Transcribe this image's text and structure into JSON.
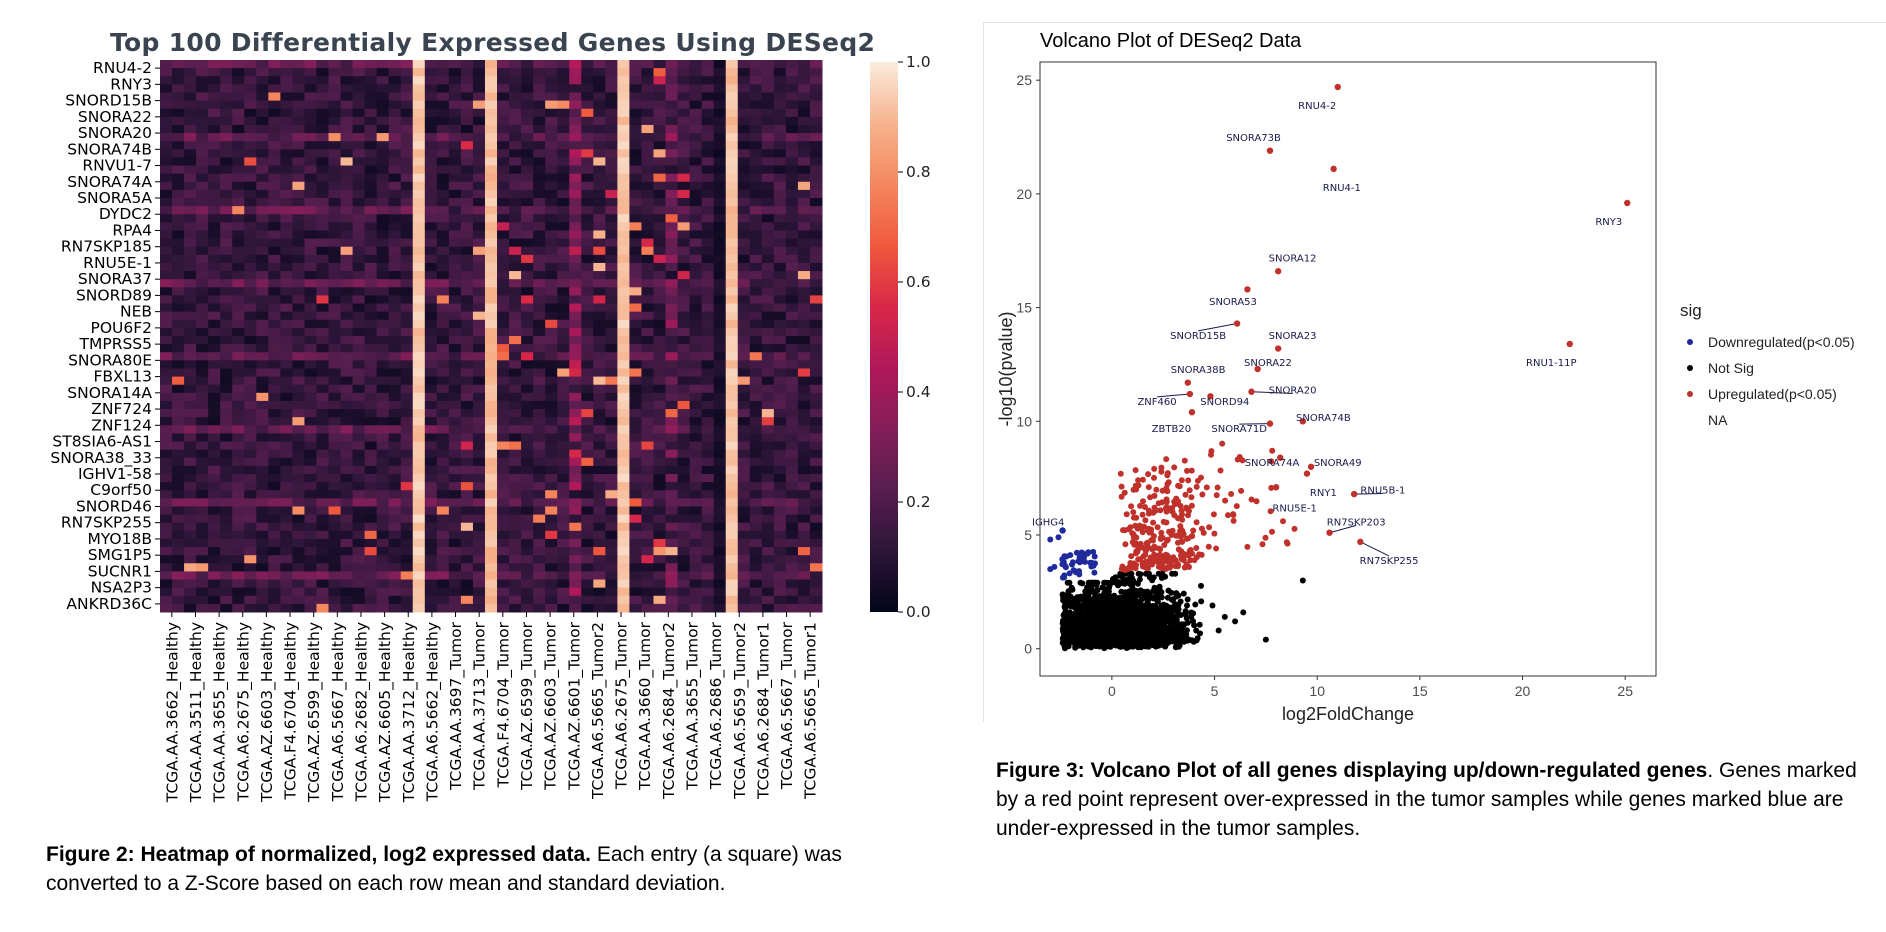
{
  "heatmap": {
    "title": "Top 100 Differentialy Expressed Genes Using DESeq2",
    "row_labels": [
      "RNU4-2",
      "RNY3",
      "SNORD15B",
      "SNORA22",
      "SNORA20",
      "SNORA74B",
      "RNVU1-7",
      "SNORA74A",
      "SNORA5A",
      "DYDC2",
      "RPA4",
      "RN7SKP185",
      "RNU5E-1",
      "SNORA37",
      "SNORD89",
      "NEB",
      "POU6F2",
      "TMPRSS5",
      "SNORA80E",
      "FBXL13",
      "SNORA14A",
      "ZNF724",
      "ZNF124",
      "ST8SIA6-AS1",
      "SNORA38_33",
      "IGHV1-58",
      "C9orf50",
      "SNORD46",
      "RN7SKP255",
      "MYO18B",
      "SMG1P5",
      "SUCNR1",
      "NSA2P3",
      "ANKRD36C"
    ],
    "col_labels": [
      "TCGA.AA.3662_Healthy",
      "TCGA.AA.3511_Healthy",
      "TCGA.AA.3655_Healthy",
      "TCGA.A6.2675_Healthy",
      "TCGA.AZ.6603_Healthy",
      "TCGA.F4.6704_Healthy",
      "TCGA.AZ.6599_Healthy",
      "TCGA.A6.5667_Healthy",
      "TCGA.A6.2682_Healthy",
      "TCGA.AZ.6605_Healthy",
      "TCGA.AA.3712_Healthy",
      "TCGA.A6.5662_Healthy",
      "TCGA.AA.3697_Tumor",
      "TCGA.AA.3713_Tumor",
      "TCGA.F4.6704_Tumor",
      "TCGA.AZ.6599_Tumor",
      "TCGA.AZ.6603_Tumor",
      "TCGA.AZ.6601_Tumor",
      "TCGA.A6.5665_Tumor2",
      "TCGA.A6.2675_Tumor",
      "TCGA.AA.3660_Tumor",
      "TCGA.A6.2684_Tumor2",
      "TCGA.AA.3655_Tumor",
      "TCGA.A6.2686_Tumor",
      "TCGA.A6.5659_Tumor2",
      "TCGA.A6.2684_Tumor1",
      "TCGA.A6.5667_Tumor",
      "TCGA.A6.5665_Tumor1"
    ],
    "colorbar_ticks": [
      "0.0",
      "0.2",
      "0.4",
      "0.6",
      "0.8",
      "1.0"
    ],
    "colorbar_range": [
      0,
      1
    ],
    "colormap": [
      "#03051a",
      "#2d1539",
      "#571e4f",
      "#841e5a",
      "#b1185a",
      "#d92847",
      "#ef5a3c",
      "#f4875e",
      "#f6b48e",
      "#faebdd"
    ]
  },
  "volcano": {
    "title": "Volcano Plot of DESeq2 Data",
    "xlabel": "log2FoldChange",
    "ylabel": "-log10(pvalue)",
    "xlim": [
      -3.5,
      26.5
    ],
    "ylim": [
      -1.2,
      25.8
    ],
    "xticks": [
      0,
      5,
      10,
      15,
      20,
      25
    ],
    "yticks": [
      0,
      5,
      10,
      15,
      20,
      25
    ],
    "legend_title": "sig",
    "legend": [
      {
        "label": "Downregulated(p<0.05)",
        "color": "#1f2a9c"
      },
      {
        "label": "Not Sig",
        "color": "#000000"
      },
      {
        "label": "Upregulated(p<0.05)",
        "color": "#c0312b"
      },
      {
        "label": "NA",
        "color": ""
      }
    ],
    "labeled_points": [
      {
        "gene": "RNU4-2",
        "x": 11.0,
        "y": 24.7,
        "lx": 10.0,
        "ly": 23.9
      },
      {
        "gene": "SNORA73B",
        "x": 7.7,
        "y": 21.9,
        "lx": 6.9,
        "ly": 22.5
      },
      {
        "gene": "RNU4-1",
        "x": 10.8,
        "y": 21.1,
        "lx": 11.2,
        "ly": 20.3
      },
      {
        "gene": "RNY3",
        "x": 25.1,
        "y": 19.6,
        "lx": 24.2,
        "ly": 18.8
      },
      {
        "gene": "SNORA12",
        "x": 8.1,
        "y": 16.6,
        "lx": 8.8,
        "ly": 17.2
      },
      {
        "gene": "SNORA53",
        "x": 6.6,
        "y": 15.8,
        "lx": 5.9,
        "ly": 15.3
      },
      {
        "gene": "SNORD15B",
        "x": 6.1,
        "y": 14.3,
        "lx": 4.2,
        "ly": 13.8
      },
      {
        "gene": "SNORA23",
        "x": 8.1,
        "y": 13.2,
        "lx": 8.8,
        "ly": 13.8
      },
      {
        "gene": "RNU1-11P",
        "x": 22.3,
        "y": 13.4,
        "lx": 21.4,
        "ly": 12.6
      },
      {
        "gene": "SNORA22",
        "x": 7.1,
        "y": 12.3,
        "lx": 7.6,
        "ly": 12.6
      },
      {
        "gene": "SNORA38B",
        "x": 3.7,
        "y": 11.7,
        "lx": 4.2,
        "ly": 12.3
      },
      {
        "gene": "SNORA20",
        "x": 6.8,
        "y": 11.3,
        "lx": 8.8,
        "ly": 11.4
      },
      {
        "gene": "ZNF460",
        "x": 3.8,
        "y": 11.2,
        "lx": 2.2,
        "ly": 10.9
      },
      {
        "gene": "SNORD94",
        "x": 4.8,
        "y": 11.1,
        "lx": 5.5,
        "ly": 10.9
      },
      {
        "gene": "ZBTB20",
        "x": 3.9,
        "y": 10.4,
        "lx": 2.9,
        "ly": 9.7
      },
      {
        "gene": "SNORA71D",
        "x": 7.7,
        "y": 9.9,
        "lx": 6.2,
        "ly": 9.7
      },
      {
        "gene": "SNORA74B",
        "x": 9.3,
        "y": 10.0,
        "lx": 10.3,
        "ly": 10.2
      },
      {
        "gene": "SNORA74A",
        "x": 8.2,
        "y": 8.4,
        "lx": 7.8,
        "ly": 8.2
      },
      {
        "gene": "SNORA49",
        "x": 9.7,
        "y": 8.0,
        "lx": 11.0,
        "ly": 8.2
      },
      {
        "gene": "RNY1",
        "x": 9.5,
        "y": 7.7,
        "lx": 10.3,
        "ly": 6.9
      },
      {
        "gene": "RNU5B-1",
        "x": 11.8,
        "y": 6.8,
        "lx": 13.2,
        "ly": 7.0
      },
      {
        "gene": "RNU5E-1",
        "x": 8.0,
        "y": 7.1,
        "lx": 8.9,
        "ly": 6.2
      },
      {
        "gene": "RN7SKP203",
        "x": 10.6,
        "y": 5.1,
        "lx": 11.9,
        "ly": 5.6
      },
      {
        "gene": "RN7SKP255",
        "x": 12.1,
        "y": 4.7,
        "lx": 13.5,
        "ly": 3.9
      },
      {
        "gene": "IGHG4",
        "x": -2.4,
        "y": 5.2,
        "lx": -3.1,
        "ly": 5.6
      }
    ]
  },
  "captions": {
    "fig2_bold": "Figure 2: Heatmap of normalized, log2 expressed data.",
    "fig2_rest": " Each entry (a square) was converted to a Z-Score based on each row mean and standard deviation.",
    "fig3_bold": "Figure 3: Volcano Plot of all genes displaying up/down-regulated genes",
    "fig3_rest": ". Genes marked by a red point represent over-expressed in the tumor samples while genes marked blue are under-expressed in the tumor samples."
  }
}
